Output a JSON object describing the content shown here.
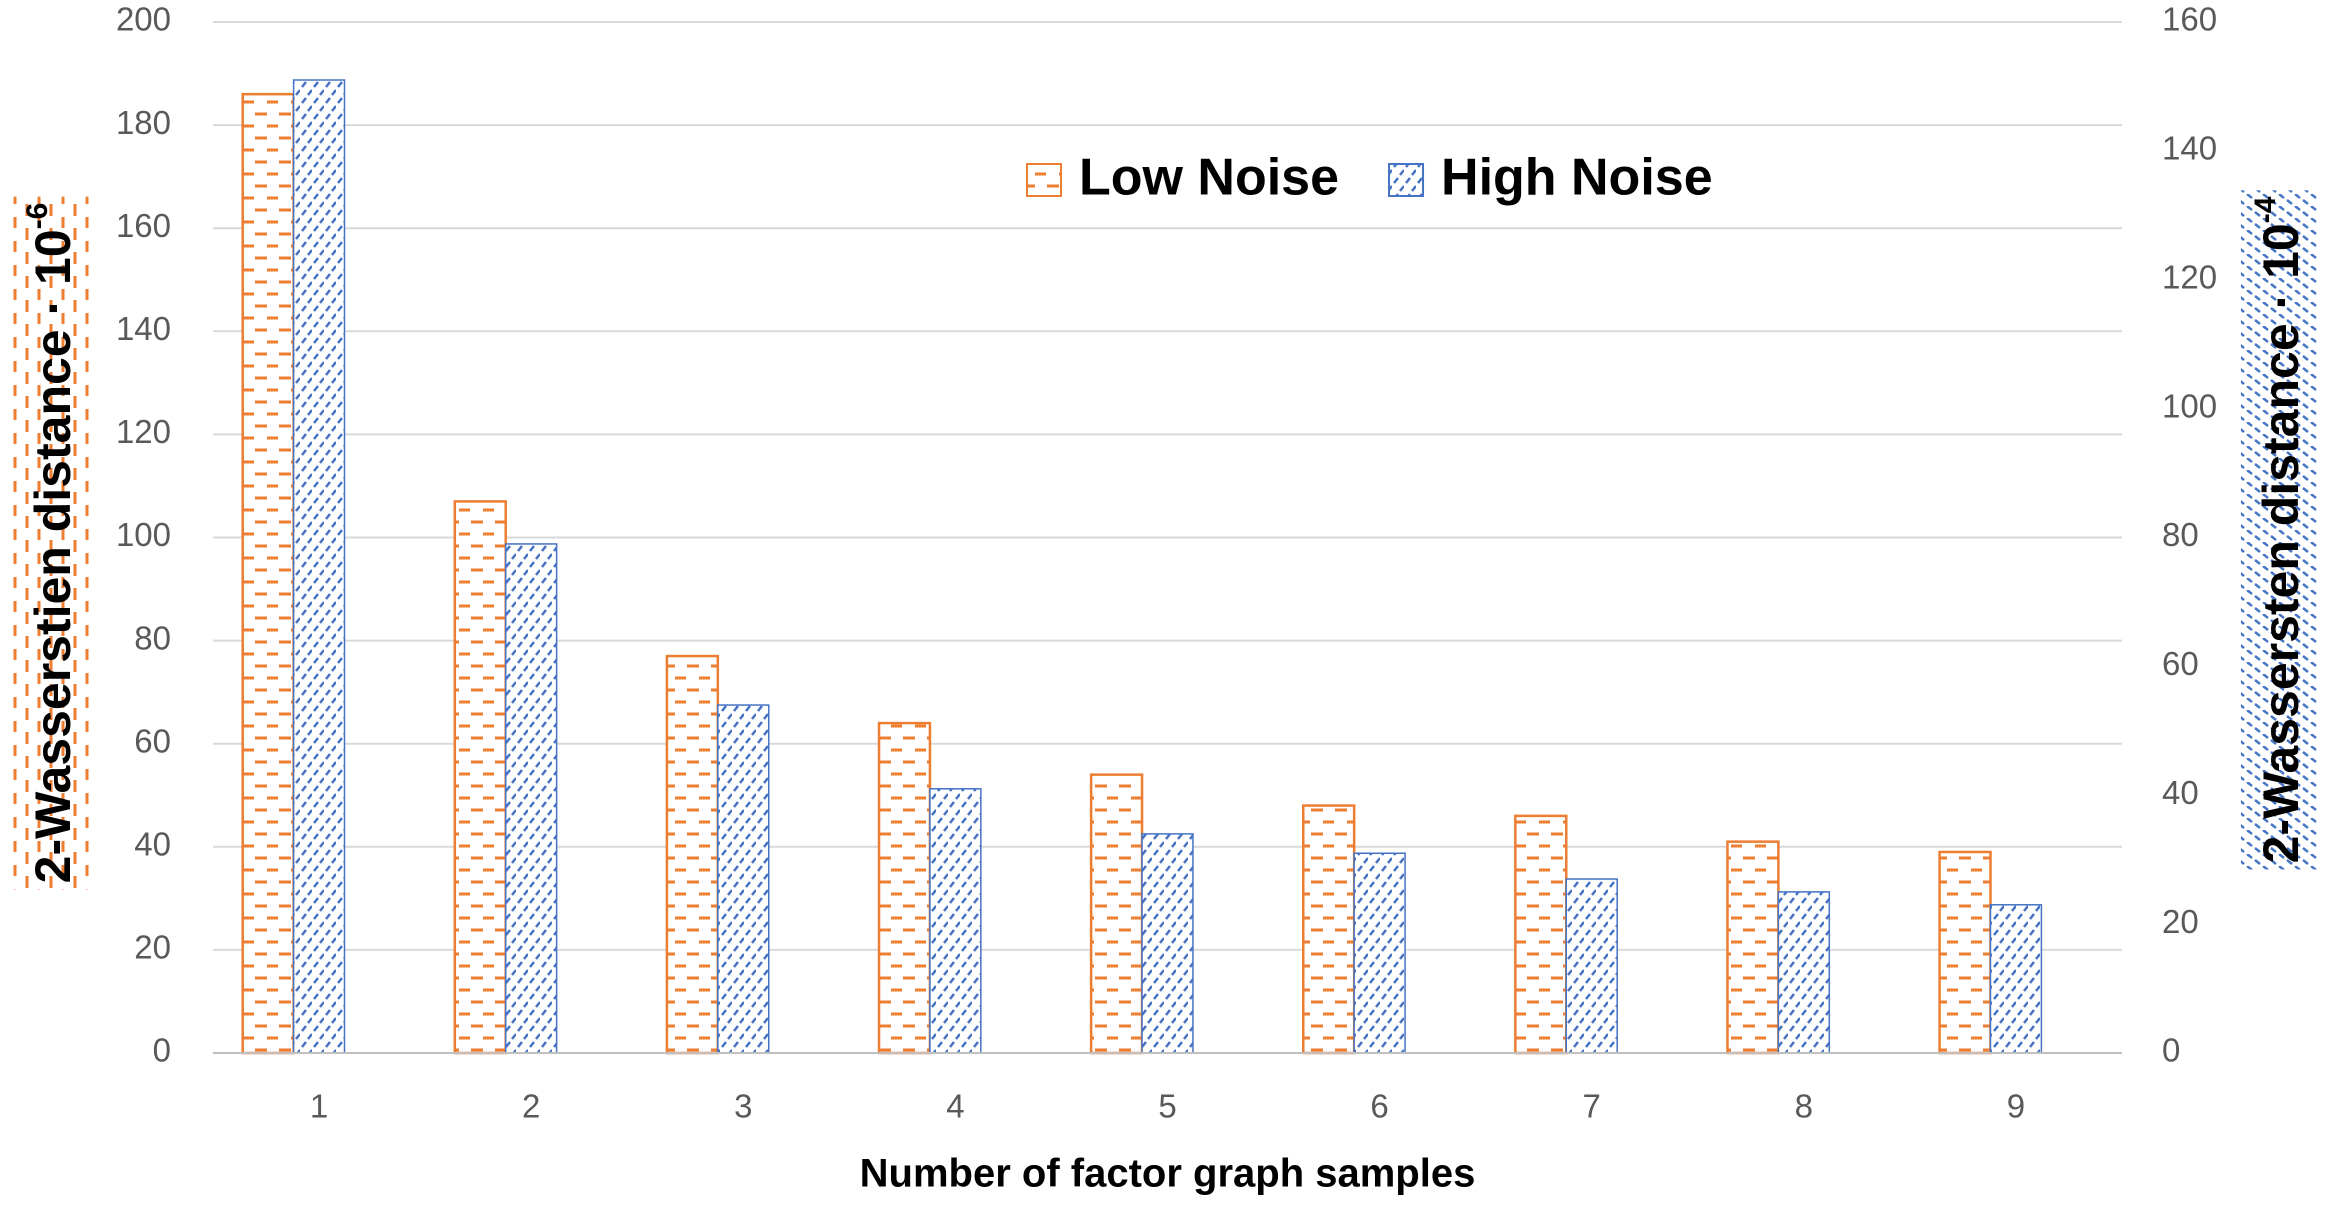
{
  "chart_data": {
    "type": "bar",
    "x_label": "Number of factor graph samples",
    "y_label": {
      "text": "2-Wasserstien distance · 10",
      "exponent": "-6"
    },
    "y2_label": {
      "text": "2-Wassersten distance · 10",
      "exponent": "-4"
    },
    "categories": [
      "1",
      "2",
      "3",
      "4",
      "5",
      "6",
      "7",
      "8",
      "9"
    ],
    "series": [
      {
        "name": "Low Noise",
        "color": "#ed7d31",
        "values": [
          186,
          107,
          77,
          64,
          54,
          48,
          46,
          41,
          39
        ]
      },
      {
        "name": "High Noise",
        "color": "#4472c4",
        "axis": "y2",
        "values": [
          151,
          79,
          54,
          41,
          34,
          31,
          27,
          25,
          23
        ]
      }
    ],
    "ylim": [
      0,
      200
    ],
    "yticks": [
      0,
      20,
      40,
      60,
      80,
      100,
      120,
      140,
      160,
      180,
      200
    ],
    "y2lim": [
      0,
      160
    ],
    "y2ticks": [
      0,
      20,
      40,
      60,
      80,
      100,
      120,
      140,
      160
    ],
    "grid": true,
    "legend": "top"
  }
}
